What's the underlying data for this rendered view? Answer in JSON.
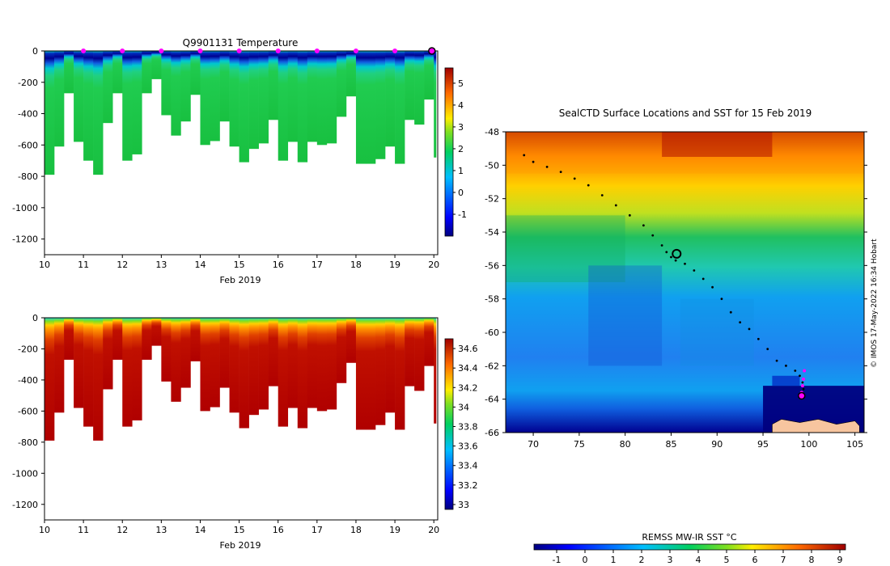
{
  "colors": {
    "marker": "#ff00ff",
    "land": "#f7c59f",
    "track": "#000000"
  },
  "chart_data": [
    {
      "type": "heatmap",
      "id": "temperature",
      "title": "Q9901131  Temperature",
      "xlabel": "Feb 2019",
      "ylabel": "",
      "xlim": [
        10,
        20.1
      ],
      "ylim": [
        -1300,
        0
      ],
      "x_ticks": [
        "10",
        "11",
        "12",
        "13",
        "14",
        "15",
        "16",
        "17",
        "18",
        "19",
        "20"
      ],
      "y_ticks": [
        "0",
        "-200",
        "-400",
        "-600",
        "-800",
        "-1000",
        "-1200"
      ],
      "colorbar_range": [
        -2,
        5.7
      ],
      "colorbar_ticks": [
        "-1",
        "0",
        "1",
        "2",
        "3",
        "4",
        "5"
      ],
      "profile_markers_day": [
        11,
        12,
        13,
        14,
        15,
        16,
        17,
        18,
        19
      ],
      "profile_times": [
        10,
        10.25,
        10.5,
        10.75,
        11,
        11.25,
        11.5,
        11.75,
        12,
        12.25,
        12.5,
        12.75,
        13,
        13.25,
        13.5,
        13.75,
        14,
        14.25,
        14.5,
        14.75,
        15,
        15.25,
        15.5,
        15.75,
        16,
        16.25,
        16.5,
        16.75,
        17,
        17.25,
        17.5,
        17.75,
        18,
        18.25,
        18.5,
        18.75,
        19,
        19.25,
        19.5,
        19.75,
        20
      ],
      "profile_max_depth": [
        790,
        610,
        270,
        580,
        700,
        790,
        460,
        270,
        700,
        660,
        270,
        180,
        410,
        540,
        450,
        280,
        600,
        575,
        450,
        610,
        710,
        625,
        590,
        440,
        700,
        580,
        710,
        580,
        600,
        590,
        420,
        290,
        720,
        720,
        690,
        610,
        720,
        440,
        470,
        310,
        680
      ],
      "mixed_layer_value": 0.8,
      "deep_value": 2.0
    },
    {
      "type": "heatmap",
      "id": "salinity",
      "title": "",
      "xlabel": "Feb 2019",
      "ylabel": "",
      "xlim": [
        10,
        20.1
      ],
      "ylim": [
        -1300,
        0
      ],
      "x_ticks": [
        "10",
        "11",
        "12",
        "13",
        "14",
        "15",
        "16",
        "17",
        "18",
        "19",
        "20"
      ],
      "y_ticks": [
        "0",
        "-200",
        "-400",
        "-600",
        "-800",
        "-1000",
        "-1200"
      ],
      "colorbar_range": [
        32.95,
        34.7
      ],
      "colorbar_ticks": [
        "33",
        "33.2",
        "33.4",
        "33.6",
        "33.8",
        "34",
        "34.2",
        "34.4",
        "34.6"
      ],
      "surface_value": 33.5,
      "deep_value": 34.65
    },
    {
      "type": "heatmap",
      "id": "sst_map",
      "title": "SealCTD Surface Locations and SST for 15 Feb 2019",
      "xlabel": "",
      "ylabel": "",
      "xlim": [
        67,
        106
      ],
      "ylim": [
        -66,
        -48
      ],
      "x_ticks": [
        "70",
        "75",
        "80",
        "85",
        "90",
        "95",
        "100",
        "105"
      ],
      "y_ticks": [
        "-48",
        "-50",
        "-52",
        "-54",
        "-56",
        "-58",
        "-60",
        "-62",
        "-64",
        "-66"
      ],
      "colorbar_label": "REMSS MW-IR SST °C",
      "colorbar_range": [
        -1.8,
        9.2
      ],
      "colorbar_ticks": [
        "-1",
        "0",
        "1",
        "2",
        "3",
        "4",
        "5",
        "6",
        "7",
        "8",
        "9"
      ],
      "track_lon": [
        69.0,
        70.0,
        71.5,
        73.0,
        74.5,
        76.0,
        77.5,
        79.0,
        80.5,
        82.0,
        83.0,
        84.0,
        84.5,
        85.0,
        85.5,
        86.5,
        87.5,
        88.5,
        89.5,
        90.5,
        91.5,
        92.5,
        93.5,
        94.5,
        95.5,
        96.5,
        97.5,
        98.5,
        99.0,
        99.3,
        99.4,
        99.3
      ],
      "track_lat": [
        -49.4,
        -49.8,
        -50.1,
        -50.4,
        -50.8,
        -51.2,
        -51.8,
        -52.4,
        -53.0,
        -53.6,
        -54.2,
        -54.8,
        -55.2,
        -55.5,
        -55.7,
        -55.9,
        -56.3,
        -56.8,
        -57.3,
        -58.0,
        -58.8,
        -59.4,
        -59.8,
        -60.4,
        -61.0,
        -61.7,
        -62.0,
        -62.3,
        -62.6,
        -63.0,
        -63.4,
        -63.8
      ],
      "recent_positions_lon": [
        99.5,
        99.4,
        99.3,
        99.2
      ],
      "recent_positions_lat": [
        -62.3,
        -62.8,
        -63.2,
        -63.6
      ],
      "latest_position": [
        99.2,
        -63.8
      ],
      "land_masses": [
        {
          "name": "Antarctica",
          "lon": [
            96,
            97,
            99,
            101,
            103,
            105,
            105.5,
            105.5,
            96
          ],
          "lat": [
            -65.5,
            -65.2,
            -65.4,
            -65.2,
            -65.5,
            -65.3,
            -65.6,
            -66,
            -66
          ]
        }
      ]
    }
  ],
  "credit": "© IMOS 17-May-2022 16:34 Hobart"
}
